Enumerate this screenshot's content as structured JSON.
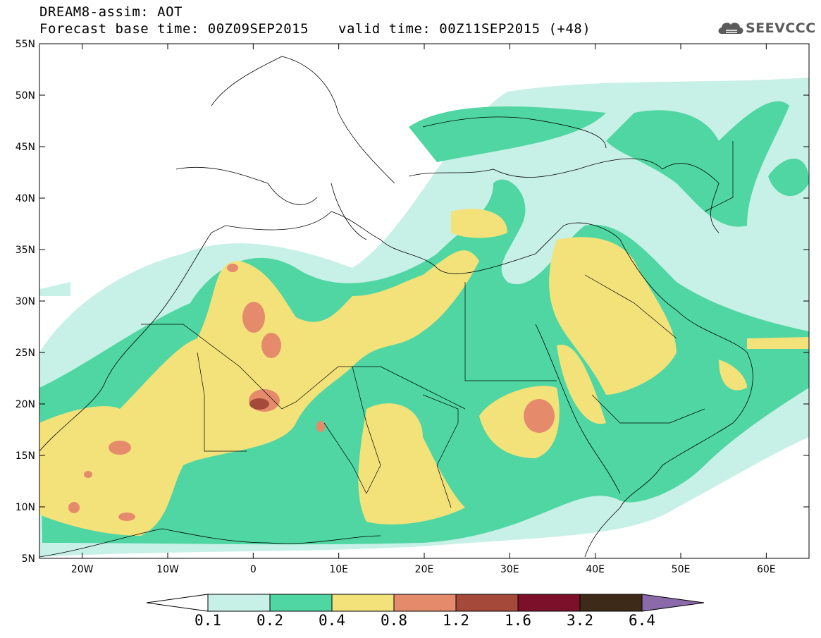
{
  "header": {
    "title": "DREAM8-assim: AOT",
    "base_time": "Forecast base time: 00Z09SEP2015",
    "valid_time": "valid time: 00Z11SEP2015 (+48)",
    "logo_text": "SEEVCCC",
    "logo_icon": "cloud-icon"
  },
  "map": {
    "lon_range": [
      -25,
      65
    ],
    "lat_range": [
      5,
      55
    ],
    "lat_labels": [
      "55N",
      "50N",
      "45N",
      "40N",
      "35N",
      "30N",
      "25N",
      "20N",
      "15N",
      "10N",
      "5N"
    ],
    "lon_labels": [
      "20W",
      "10W",
      "0",
      "10E",
      "20E",
      "30E",
      "40E",
      "50E",
      "60E"
    ]
  },
  "colorbar": {
    "levels": [
      "0.1",
      "0.2",
      "0.4",
      "0.8",
      "1.2",
      "1.6",
      "3.2",
      "6.4"
    ],
    "colors": [
      "#ffffff",
      "#c7f0e6",
      "#4fd6a3",
      "#f3e27a",
      "#e58b6c",
      "#a54a3a",
      "#7c0f2a",
      "#3e2a18",
      "#8a6aa8"
    ]
  }
}
